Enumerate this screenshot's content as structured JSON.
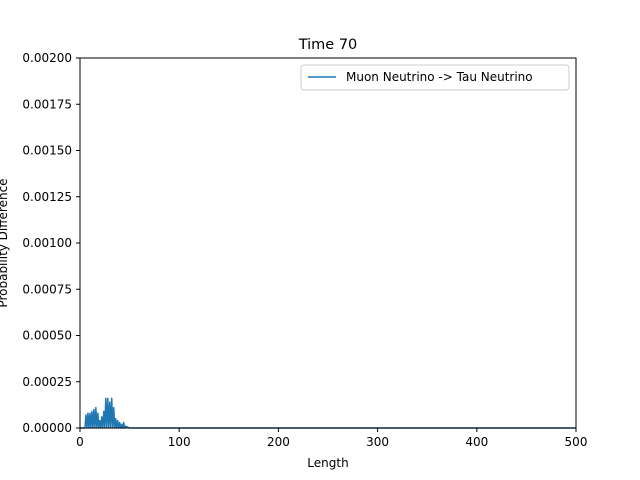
{
  "chart_data": {
    "type": "line",
    "title": "Time 70",
    "xlabel": "Length",
    "ylabel": "Probability Difference",
    "xlim": [
      0,
      500
    ],
    "ylim": [
      0,
      0.002
    ],
    "xticks": [
      "0",
      "100",
      "200",
      "300",
      "400",
      "500"
    ],
    "yticks": [
      "0.00000",
      "0.00025",
      "0.00050",
      "0.00075",
      "0.00100",
      "0.00125",
      "0.00150",
      "0.00175",
      "0.00200"
    ],
    "grid": false,
    "legend_position": "top-right",
    "series": [
      {
        "name": "Muon Neutrino -> Tau Neutrino",
        "color": "#1f77b4",
        "x": [
          0,
          5,
          6,
          7,
          8,
          9,
          10,
          11,
          12,
          13,
          14,
          15,
          16,
          17,
          18,
          19,
          20,
          21,
          22,
          23,
          24,
          25,
          26,
          27,
          28,
          29,
          30,
          31,
          32,
          33,
          34,
          35,
          36,
          37,
          38,
          39,
          40,
          41,
          42,
          43,
          44,
          45,
          46,
          50,
          100,
          200,
          300,
          400,
          500
        ],
        "y": [
          0,
          0,
          7e-05,
          0,
          8e-05,
          0,
          8e-05,
          0,
          9e-05,
          0,
          0.0001,
          0,
          0.00011,
          0,
          8e-05,
          0,
          4e-05,
          0,
          6e-05,
          0,
          9e-05,
          0,
          0.00016,
          0,
          0.00016,
          0,
          0.00014,
          0,
          0.00016,
          0,
          0.00011,
          0,
          5e-05,
          0,
          4e-05,
          0,
          3e-05,
          0,
          2e-05,
          0,
          3e-05,
          0,
          1e-05,
          0,
          0,
          0,
          0,
          0,
          0
        ]
      }
    ]
  }
}
